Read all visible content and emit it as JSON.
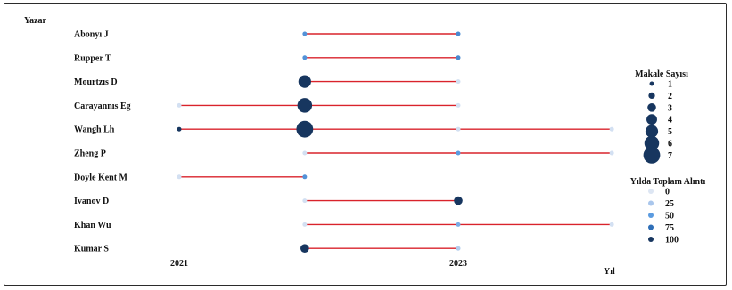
{
  "chart_data": {
    "type": "scatter",
    "y_axis_title": "Yazar",
    "x_axis_title": "Yıl",
    "x_tick_labels": [
      "2021",
      "2023"
    ],
    "authors": [
      {
        "name": "Abonyı J",
        "points": [
          {
            "year": 2021.9,
            "papers": 1,
            "citations": 55
          },
          {
            "year": 2023.0,
            "papers": 1,
            "citations": 60
          }
        ]
      },
      {
        "name": "Rupper T",
        "points": [
          {
            "year": 2021.9,
            "papers": 1,
            "citations": 55
          },
          {
            "year": 2023.0,
            "papers": 1,
            "citations": 60
          }
        ]
      },
      {
        "name": "Mourtzıs D",
        "points": [
          {
            "year": 2021.9,
            "papers": 5,
            "citations": 100
          },
          {
            "year": 2023.0,
            "papers": 1,
            "citations": 5
          }
        ]
      },
      {
        "name": "Carayannıs Eg",
        "points": [
          {
            "year": 2021.0,
            "papers": 1,
            "citations": 5
          },
          {
            "year": 2021.9,
            "papers": 6,
            "citations": 100
          },
          {
            "year": 2023.0,
            "papers": 1,
            "citations": 5
          }
        ]
      },
      {
        "name": "Wangh Lh",
        "points": [
          {
            "year": 2021.0,
            "papers": 1,
            "citations": 100
          },
          {
            "year": 2021.9,
            "papers": 7,
            "citations": 100
          },
          {
            "year": 2023.0,
            "papers": 1,
            "citations": 5
          },
          {
            "year": 2024.1,
            "papers": 1,
            "citations": 5
          }
        ]
      },
      {
        "name": "Zheng P",
        "points": [
          {
            "year": 2021.9,
            "papers": 1,
            "citations": 5
          },
          {
            "year": 2023.0,
            "papers": 1,
            "citations": 50
          },
          {
            "year": 2024.1,
            "papers": 1,
            "citations": 5
          }
        ]
      },
      {
        "name": "Doyle Kent M",
        "points": [
          {
            "year": 2021.0,
            "papers": 1,
            "citations": 5
          },
          {
            "year": 2021.9,
            "papers": 1,
            "citations": 55
          }
        ]
      },
      {
        "name": "Ivanov D",
        "points": [
          {
            "year": 2021.9,
            "papers": 1,
            "citations": 5
          },
          {
            "year": 2023.0,
            "papers": 3,
            "citations": 100
          }
        ]
      },
      {
        "name": "Khan Wu",
        "points": [
          {
            "year": 2021.9,
            "papers": 1,
            "citations": 5
          },
          {
            "year": 2023.0,
            "papers": 1,
            "citations": 40
          },
          {
            "year": 2024.1,
            "papers": 1,
            "citations": 5
          }
        ]
      },
      {
        "name": "Kumar S",
        "points": [
          {
            "year": 2021.9,
            "papers": 3,
            "citations": 100
          },
          {
            "year": 2023.0,
            "papers": 1,
            "citations": 20
          }
        ]
      }
    ],
    "legend_size": {
      "title": "Makale Sayısı",
      "values": [
        1,
        2,
        3,
        4,
        5,
        6,
        7
      ]
    },
    "legend_color": {
      "title": "Yılda Toplam Alıntı",
      "values": [
        0,
        25,
        50,
        75,
        100
      ],
      "colors": [
        "#dde6f3",
        "#a9c6ec",
        "#5b9be0",
        "#2f6fb8",
        "#17365f"
      ]
    },
    "line_color": "#d9232b",
    "grid": false,
    "legend_placement": "right"
  }
}
